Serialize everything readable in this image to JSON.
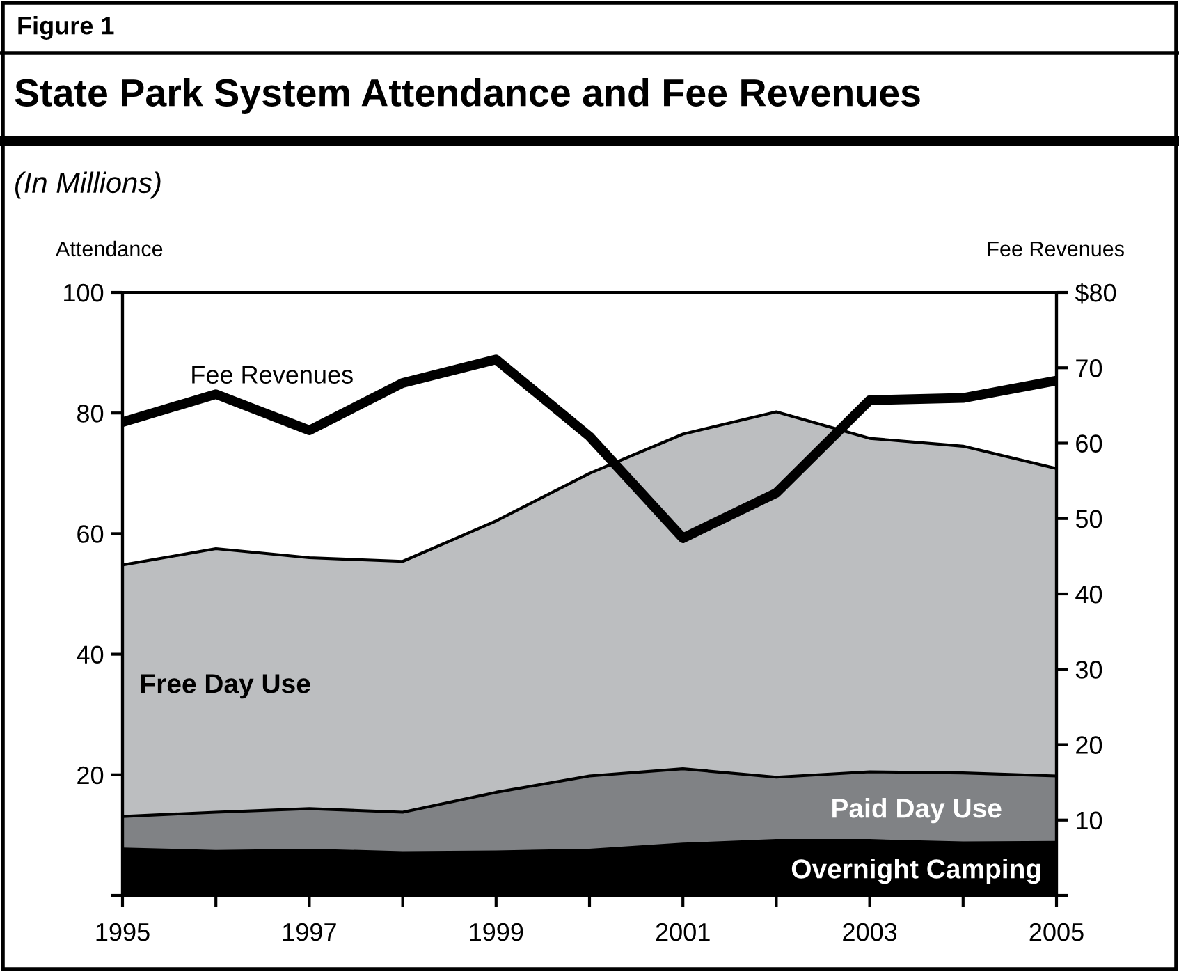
{
  "chart_data": {
    "type": "area",
    "title": "State Park System Attendance and Fee Revenues",
    "subtitle": "(In Millions)",
    "annotations": [
      "Figure 1"
    ],
    "ylabel": "Attendance",
    "y2label": "Fee Revenues",
    "stacked": true,
    "x": [
      1995,
      1996,
      1997,
      1998,
      1999,
      2000,
      2001,
      2002,
      2003,
      2004,
      2005
    ],
    "xlim": [
      1995,
      2005
    ],
    "xticks": [
      1995,
      {
        "value": 1996,
        "label": null
      },
      1997,
      {
        "value": 1998,
        "label": null
      },
      1999,
      {
        "value": 2000,
        "label": null
      },
      2001,
      {
        "value": 2002,
        "label": null
      },
      2003,
      {
        "value": 2004,
        "label": null
      },
      2005
    ],
    "ylim": [
      0,
      100
    ],
    "yticks": [
      {
        "value": 0,
        "label": null
      },
      20,
      40,
      60,
      80,
      100
    ],
    "y2lim": [
      0,
      80
    ],
    "y2ticks": [
      {
        "value": 0,
        "label": null
      },
      10,
      20,
      30,
      40,
      50,
      60,
      70,
      {
        "value": 80,
        "label": "$80"
      }
    ],
    "series": [
      {
        "name": "Overnight Camping",
        "color": "#000000",
        "values": [
          7.7,
          7.3,
          7.5,
          7.1,
          7.2,
          7.5,
          8.5,
          9.1,
          9.1,
          8.7,
          8.8
        ]
      },
      {
        "name": "Paid Day Use",
        "color": "#808285",
        "values": [
          5.4,
          6.5,
          6.9,
          6.7,
          9.9,
          12.3,
          12.5,
          10.5,
          11.4,
          11.6,
          11.0
        ]
      },
      {
        "name": "Free Day Use",
        "color": "#bcbec0",
        "values": [
          41.7,
          43.7,
          41.6,
          41.6,
          45.0,
          50.2,
          55.5,
          60.6,
          55.3,
          54.2,
          51.0
        ]
      },
      {
        "name": "Fee Revenues",
        "type": "line",
        "axis": "y2",
        "color": "#000000",
        "values": [
          62.8,
          66.5,
          61.7,
          68.0,
          71.1,
          60.9,
          47.4,
          53.4,
          65.7,
          66.0,
          68.3
        ]
      }
    ]
  }
}
